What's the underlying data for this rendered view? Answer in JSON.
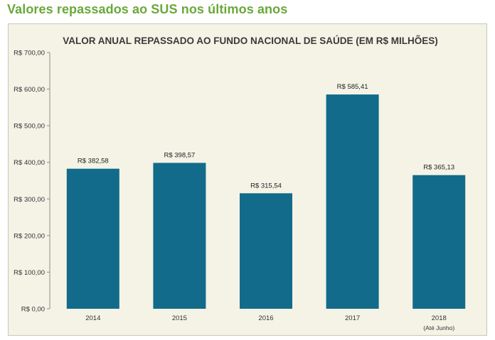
{
  "page": {
    "heading": "Valores repassados ao SUS nos últimos anos"
  },
  "colors": {
    "heading": "#6aa83a",
    "bar": "#126b8a",
    "panel": "#f4f3e6",
    "axis": "#8c8c8c"
  },
  "chart_data": {
    "type": "bar",
    "title": "VALOR ANUAL REPASSADO AO FUNDO NACIONAL DE SAÚDE (EM R$ MILHÕES)",
    "xlabel": "",
    "ylabel": "",
    "categories": [
      "2014",
      "2015",
      "2016",
      "2017",
      "2018"
    ],
    "category_sublabels": [
      "",
      "",
      "",
      "",
      "(Até Junho)"
    ],
    "values": [
      382.58,
      398.57,
      315.54,
      585.41,
      365.13
    ],
    "value_labels": [
      "R$ 382,58",
      "R$ 398,57",
      "R$ 315,54",
      "R$ 585,41",
      "R$ 365,13"
    ],
    "ylim": [
      0,
      700
    ],
    "yticks": [
      0,
      100,
      200,
      300,
      400,
      500,
      600,
      700
    ],
    "ytick_labels": [
      "R$ 0,00",
      "R$ 100,00",
      "R$ 200,00",
      "R$ 300,00",
      "R$ 400,00",
      "R$ 500,00",
      "R$ 600,00",
      "R$ 700,00"
    ],
    "grid": false,
    "legend": "none"
  }
}
